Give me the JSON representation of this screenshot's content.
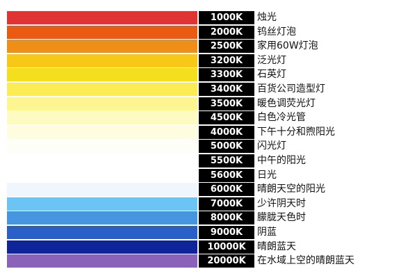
{
  "color_temperature_table": {
    "rows": [
      {
        "kelvin": "1000K",
        "description": "烛光",
        "color": "#e03434"
      },
      {
        "kelvin": "2000K",
        "description": "钨丝灯泡",
        "color": "#ea5a10"
      },
      {
        "kelvin": "2500K",
        "description": "家用60W灯泡",
        "color": "#f08f18"
      },
      {
        "kelvin": "3200K",
        "description": "泛光灯",
        "color": "#f8c818"
      },
      {
        "kelvin": "3300K",
        "description": "石英灯",
        "color": "#f4df1e"
      },
      {
        "kelvin": "3400K",
        "description": "百货公司造型灯",
        "color": "#fbec55"
      },
      {
        "kelvin": "3500K",
        "description": "暖色调荧光灯",
        "color": "#fcf592"
      },
      {
        "kelvin": "4500K",
        "description": "白色冷光管",
        "color": "#fdfbc2"
      },
      {
        "kelvin": "4000K",
        "description": "下午十分和煦阳光",
        "color": "#fefde0"
      },
      {
        "kelvin": "5000K",
        "description": "闪光灯",
        "color": "#fefef8"
      },
      {
        "kelvin": "5500K",
        "description": "中午的阳光",
        "color": "#ffffff"
      },
      {
        "kelvin": "5600K",
        "description": "日光",
        "color": "#ffffff"
      },
      {
        "kelvin": "6000K",
        "description": "晴朗天空的阳光",
        "color": "#f0f6fd"
      },
      {
        "kelvin": "7000K",
        "description": "少许阴天时",
        "color": "#6cc4f5"
      },
      {
        "kelvin": "8000K",
        "description": "朦胧天色时",
        "color": "#4895df"
      },
      {
        "kelvin": "9000K",
        "description": "阴蓝",
        "color": "#2a5fc8"
      },
      {
        "kelvin": "10000K",
        "description": "晴朗蓝天",
        "color": "#10249a"
      },
      {
        "kelvin": "20000K",
        "description": "在水域上空的晴朗蓝天",
        "color": "#8a62b8"
      }
    ]
  }
}
